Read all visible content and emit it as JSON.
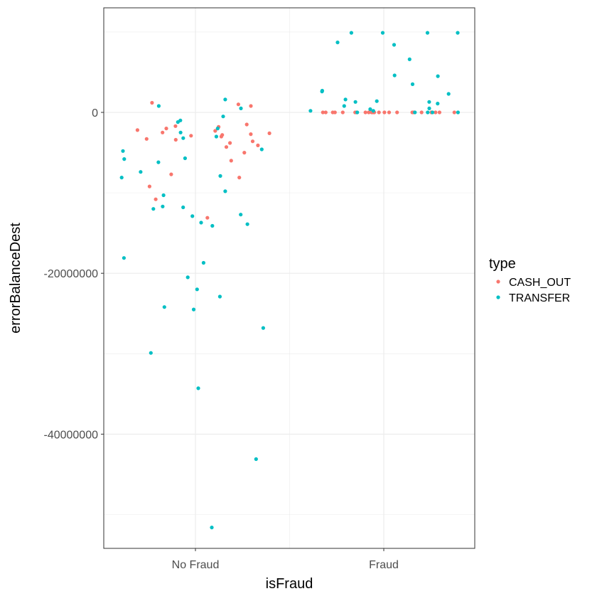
{
  "chart_data": {
    "type": "scatter",
    "title": "",
    "xlabel": "isFraud",
    "ylabel": "errorBalanceDest",
    "categories": [
      "No Fraud",
      "Fraud"
    ],
    "y_ticks": [
      0,
      -20000000,
      -40000000
    ],
    "y_tick_labels": [
      "0",
      "-20000000",
      "-40000000"
    ],
    "ylim": [
      -54200000,
      13000000
    ],
    "grid": true,
    "jitter": true,
    "legend": {
      "title": "type",
      "placement": "right",
      "entries": [
        "CASH_OUT",
        "TRANSFER"
      ]
    },
    "series": [
      {
        "name": "CASH_OUT",
        "color": "#F8766D",
        "points": [
          [
            "No Fraud",
            -1800000
          ],
          [
            "No Fraud",
            -2000000
          ],
          [
            "No Fraud",
            -2300000
          ],
          [
            "No Fraud",
            -2600000
          ],
          [
            "No Fraud",
            -2800000
          ],
          [
            "No Fraud",
            -3000000
          ],
          [
            "No Fraud",
            -3300000
          ],
          [
            "No Fraud",
            -3600000
          ],
          [
            "No Fraud",
            -4300000
          ],
          [
            "No Fraud",
            -5000000
          ],
          [
            "No Fraud",
            -6000000
          ],
          [
            "No Fraud",
            -7700000
          ],
          [
            "No Fraud",
            -8100000
          ],
          [
            "No Fraud",
            -9200000
          ],
          [
            "No Fraud",
            -13100000
          ],
          [
            "No Fraud",
            -10800000
          ],
          [
            "No Fraud",
            1200000
          ],
          [
            "No Fraud",
            1000000
          ],
          [
            "No Fraud",
            800000
          ],
          [
            "No Fraud",
            -1500000
          ],
          [
            "No Fraud",
            -2200000
          ],
          [
            "No Fraud",
            -2900000
          ],
          [
            "No Fraud",
            -3800000
          ],
          [
            "No Fraud",
            -1700000
          ],
          [
            "No Fraud",
            -2500000
          ],
          [
            "No Fraud",
            -3400000
          ],
          [
            "No Fraud",
            -4100000
          ],
          [
            "No Fraud",
            -2700000
          ],
          [
            "Fraud",
            0
          ],
          [
            "Fraud",
            0
          ],
          [
            "Fraud",
            0
          ],
          [
            "Fraud",
            0
          ],
          [
            "Fraud",
            0
          ],
          [
            "Fraud",
            0
          ],
          [
            "Fraud",
            0
          ],
          [
            "Fraud",
            0
          ],
          [
            "Fraud",
            0
          ],
          [
            "Fraud",
            0
          ],
          [
            "Fraud",
            0
          ],
          [
            "Fraud",
            0
          ],
          [
            "Fraud",
            0
          ],
          [
            "Fraud",
            0
          ],
          [
            "Fraud",
            0
          ],
          [
            "Fraud",
            0
          ],
          [
            "Fraud",
            0
          ],
          [
            "Fraud",
            0
          ],
          [
            "Fraud",
            0
          ],
          [
            "Fraud",
            0
          ],
          [
            "Fraud",
            0
          ],
          [
            "Fraud",
            0
          ],
          [
            "Fraud",
            0
          ],
          [
            "Fraud",
            0
          ]
        ]
      },
      {
        "name": "TRANSFER",
        "color": "#00BFC4",
        "points": [
          [
            "No Fraud",
            1600000
          ],
          [
            "No Fraud",
            800000
          ],
          [
            "No Fraud",
            -1200000
          ],
          [
            "No Fraud",
            -2500000
          ],
          [
            "No Fraud",
            -3200000
          ],
          [
            "No Fraud",
            -4600000
          ],
          [
            "No Fraud",
            -5700000
          ],
          [
            "No Fraud",
            -5800000
          ],
          [
            "No Fraud",
            -6200000
          ],
          [
            "No Fraud",
            -7400000
          ],
          [
            "No Fraud",
            -7900000
          ],
          [
            "No Fraud",
            -8100000
          ],
          [
            "No Fraud",
            -10300000
          ],
          [
            "No Fraud",
            -11700000
          ],
          [
            "No Fraud",
            -11800000
          ],
          [
            "No Fraud",
            -12000000
          ],
          [
            "No Fraud",
            -12700000
          ],
          [
            "No Fraud",
            -12900000
          ],
          [
            "No Fraud",
            -13700000
          ],
          [
            "No Fraud",
            -13900000
          ],
          [
            "No Fraud",
            -14100000
          ],
          [
            "No Fraud",
            -9800000
          ],
          [
            "No Fraud",
            -18100000
          ],
          [
            "No Fraud",
            -18700000
          ],
          [
            "No Fraud",
            -20500000
          ],
          [
            "No Fraud",
            -22000000
          ],
          [
            "No Fraud",
            -22900000
          ],
          [
            "No Fraud",
            -24200000
          ],
          [
            "No Fraud",
            -24500000
          ],
          [
            "No Fraud",
            -26800000
          ],
          [
            "No Fraud",
            -29900000
          ],
          [
            "No Fraud",
            -34300000
          ],
          [
            "No Fraud",
            -43100000
          ],
          [
            "No Fraud",
            -51600000
          ],
          [
            "No Fraud",
            -4800000
          ],
          [
            "No Fraud",
            -3000000
          ],
          [
            "No Fraud",
            -2000000
          ],
          [
            "No Fraud",
            -1000000
          ],
          [
            "No Fraud",
            500000
          ],
          [
            "No Fraud",
            -500000
          ],
          [
            "Fraud",
            9900000
          ],
          [
            "Fraud",
            9900000
          ],
          [
            "Fraud",
            9900000
          ],
          [
            "Fraud",
            9900000
          ],
          [
            "Fraud",
            8700000
          ],
          [
            "Fraud",
            8400000
          ],
          [
            "Fraud",
            6600000
          ],
          [
            "Fraud",
            4500000
          ],
          [
            "Fraud",
            4600000
          ],
          [
            "Fraud",
            3500000
          ],
          [
            "Fraud",
            2600000
          ],
          [
            "Fraud",
            2300000
          ],
          [
            "Fraud",
            2700000
          ],
          [
            "Fraud",
            1600000
          ],
          [
            "Fraud",
            1400000
          ],
          [
            "Fraud",
            1300000
          ],
          [
            "Fraud",
            1300000
          ],
          [
            "Fraud",
            1100000
          ],
          [
            "Fraud",
            800000
          ],
          [
            "Fraud",
            500000
          ],
          [
            "Fraud",
            400000
          ],
          [
            "Fraud",
            200000
          ],
          [
            "Fraud",
            200000
          ],
          [
            "Fraud",
            0
          ],
          [
            "Fraud",
            0
          ],
          [
            "Fraud",
            0
          ],
          [
            "Fraud",
            0
          ],
          [
            "Fraud",
            0
          ]
        ]
      }
    ]
  }
}
